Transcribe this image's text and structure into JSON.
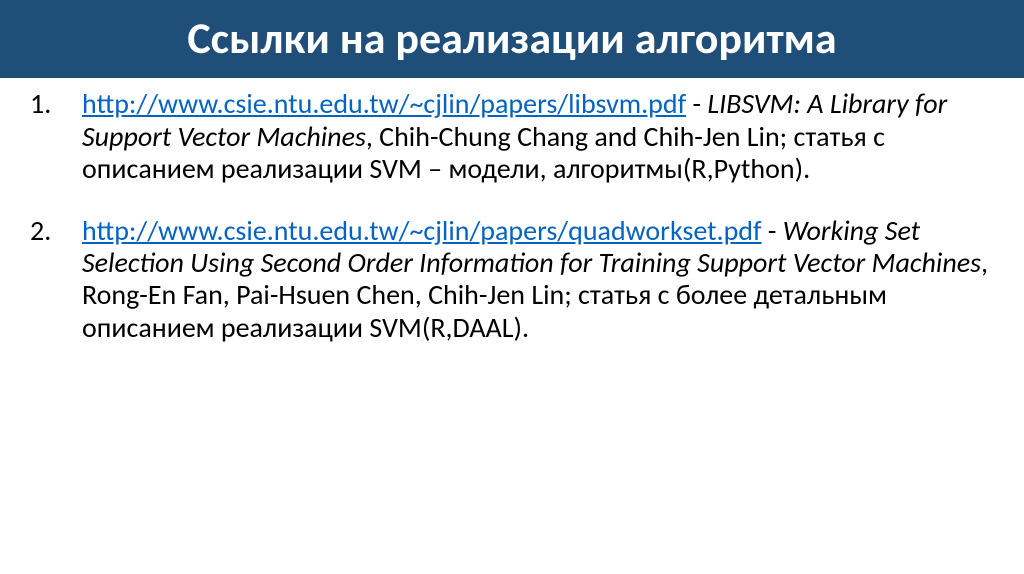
{
  "header": {
    "title": "Ссылки на реализации алгоритма",
    "bg_color": "#1f4e79",
    "text_color": "#ffffff",
    "font_size": 44,
    "font_weight": "bold"
  },
  "body": {
    "font_size": 28,
    "text_color": "#000000",
    "link_color": "#0563c1",
    "background_color": "#ffffff"
  },
  "references": [
    {
      "num": "1.",
      "url": "http://www.csie.ntu.edu.tw/~cjlin/papers/libsvm.pdf",
      "sep_after_url": " - ",
      "paper_title": "LIBSVM: A Library for Support Vector Machines",
      "authors_desc": ", Chih-Chung Chang and Chih-Jen Lin; статья с описанием реализации SVM – модели, алгоритмы(R,Python)."
    },
    {
      "num": "2.",
      "url": "http://www.csie.ntu.edu.tw/~cjlin/papers/quadworkset.pdf",
      "sep_after_url": " - ",
      "paper_title": "Working Set Selection Using Second Order Information for Training Support Vector Machines",
      "authors_desc": ", Rong-En Fan, Pai-Hsuen Chen, Chih-Jen Lin; статья с более детальным описанием реализации SVM(R,DAAL)."
    }
  ]
}
